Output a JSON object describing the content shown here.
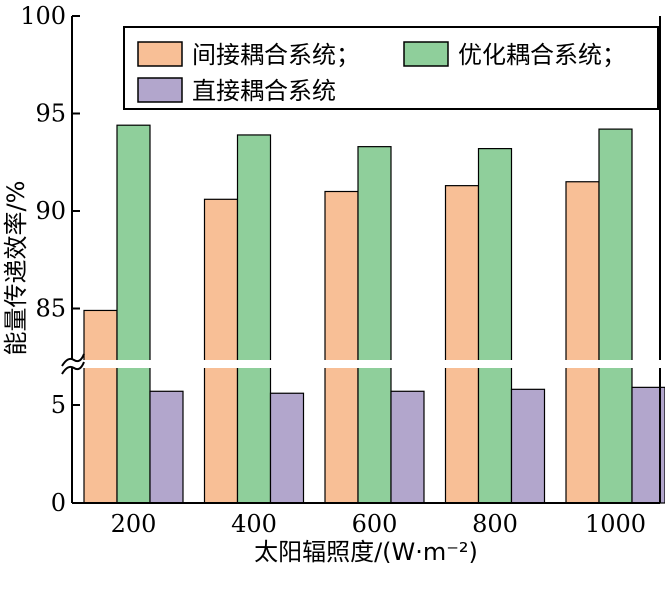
{
  "chart_data": {
    "type": "bar",
    "xlabel": "太阳辐照度/(W·m⁻²)",
    "ylabel": "能量传递效率/%",
    "categories": [
      "200",
      "400",
      "600",
      "800",
      "1000"
    ],
    "y_ticks": [
      "0",
      "5",
      "85",
      "90",
      "95",
      "100"
    ],
    "axis_break": {
      "lower_range": [
        0,
        7
      ],
      "upper_range": [
        83,
        100
      ]
    },
    "legend_position": "top-right",
    "grid": false,
    "series": [
      {
        "name": "间接耦合系统；",
        "color": "#f8bf96",
        "values": [
          84.9,
          90.6,
          91.0,
          91.3,
          91.5
        ]
      },
      {
        "name": "优化耦合系统；",
        "color": "#8fcf9b",
        "values": [
          94.4,
          93.9,
          93.3,
          93.2,
          94.2
        ]
      },
      {
        "name": "直接耦合系统",
        "color": "#b2a6cc",
        "values": [
          5.7,
          5.6,
          5.7,
          5.8,
          5.9
        ]
      }
    ]
  }
}
